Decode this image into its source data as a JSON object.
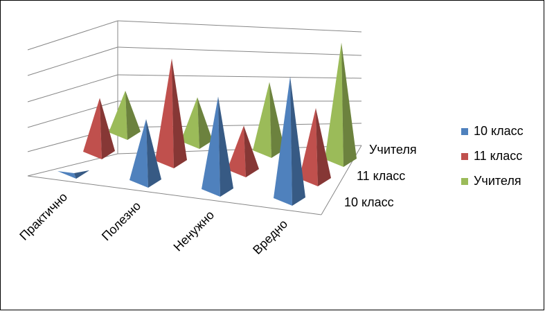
{
  "chart_data": {
    "type": "pyramid3d",
    "categories": [
      "Практично",
      "Полезно",
      "Ненужно",
      "Вредно"
    ],
    "series": [
      {
        "name": "10 класс",
        "color": "#4f81bd",
        "values": [
          0,
          2.6,
          3.9,
          5.1
        ]
      },
      {
        "name": "11 класс",
        "color": "#c0504d",
        "values": [
          2.3,
          4.3,
          1.9,
          3.0
        ]
      },
      {
        "name": "Учителя",
        "color": "#9bbb59",
        "values": [
          1.8,
          1.9,
          2.9,
          4.9
        ]
      }
    ],
    "depth_labels": [
      "10 класс",
      "11 класс",
      "Учителя"
    ],
    "ylim": [
      0,
      6
    ]
  }
}
